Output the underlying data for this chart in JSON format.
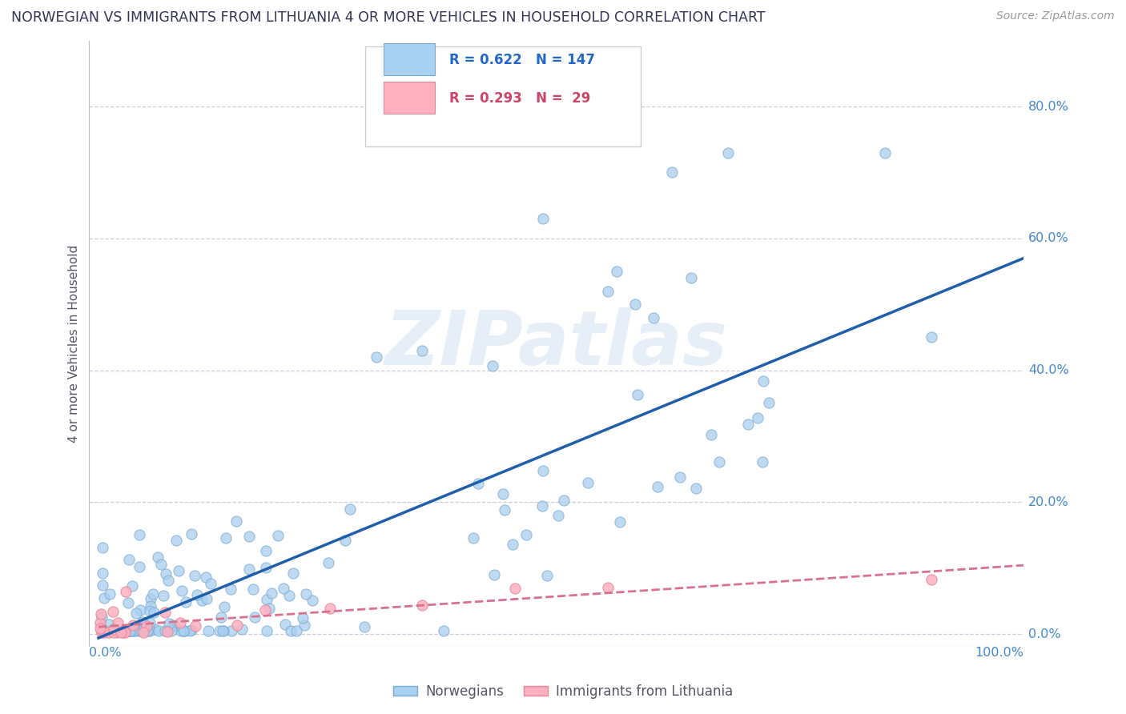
{
  "title": "NORWEGIAN VS IMMIGRANTS FROM LITHUANIA 4 OR MORE VEHICLES IN HOUSEHOLD CORRELATION CHART",
  "source": "Source: ZipAtlas.com",
  "ylabel": "4 or more Vehicles in Household",
  "legend1_r": "0.622",
  "legend1_n": "147",
  "legend2_r": "0.293",
  "legend2_n": "29",
  "legend1_label": "Norwegians",
  "legend2_label": "Immigrants from Lithuania",
  "watermark": "ZIPatlas",
  "blue_scatter_face": "#A8D0F0",
  "blue_scatter_edge": "#7AAAD0",
  "pink_scatter_face": "#FFB0C0",
  "pink_scatter_edge": "#E08898",
  "line_blue": "#1E5EAA",
  "line_pink": "#D87090",
  "title_color": "#333355",
  "source_color": "#999999",
  "legend_blue_color": "#2266CC",
  "legend_pink_color": "#CC4466",
  "background_color": "#FFFFFF",
  "grid_color": "#CCCCDD",
  "axis_label_color": "#4488CC",
  "ylabel_color": "#555566"
}
